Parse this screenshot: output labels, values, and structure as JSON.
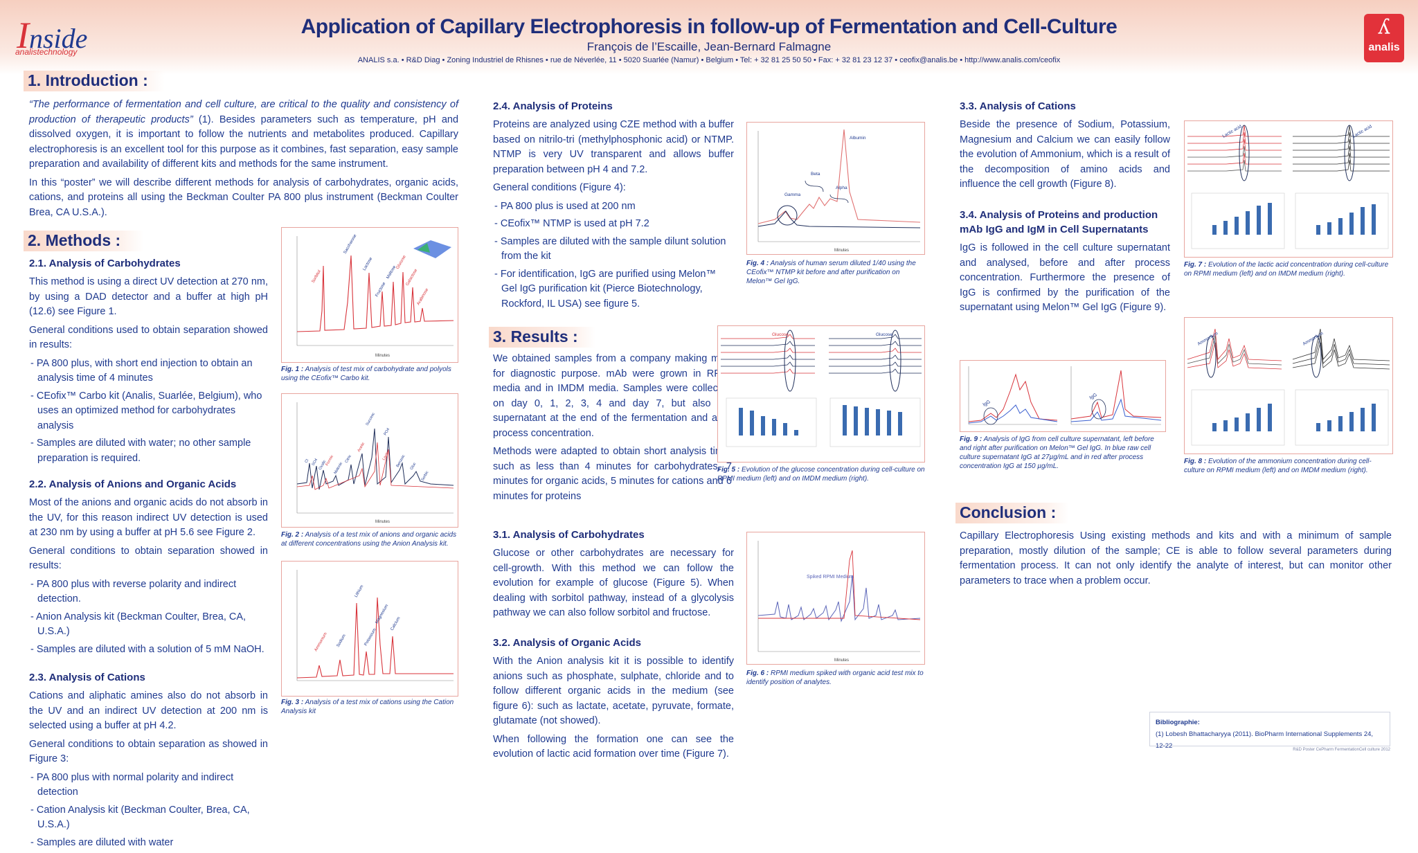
{
  "header": {
    "title": "Application of Capillary Electrophoresis in follow-up of Fermentation and Cell-Culture",
    "authors": "François de l’Escaille, Jean-Bernard Falmagne",
    "address": "ANALIS s.a. • R&D Diag • Zoning Industriel de Rhisnes • rue de Néverlée, 11 • 5020 Suarlée (Namur) • Belgium • Tel: + 32 81 25 50 50 • Fax: + 32 81 23 12 37 • ceofix@analis.be • http://www.analis.com/ceofix",
    "logo_left_main": "nside",
    "logo_left_initial": "I",
    "logo_left_sub": "analistechnology",
    "logo_right": "analis"
  },
  "intro": {
    "heading": "1. Introduction :",
    "quote": "“The performance of fermentation and cell culture, are critical to the quality and consistency of production of therapeutic products”",
    "p1_rest": " (1). Besides parameters such as temperature, pH and dissolved oxygen, it is important to follow the nutrients and metabolites produced. Capillary electrophoresis is an excellent tool for this purpose as it combines, fast separation, easy sample preparation and availability of different kits and methods for the same instrument.",
    "p2": "In this “poster” we will describe different methods for analysis of carbohydrates, organic acids, cations, and proteins all using the Beckman Coulter PA 800 plus instrument (Beckman Coulter Brea, CA U.S.A.)."
  },
  "methods": {
    "heading": "2. Methods :",
    "carb": {
      "title": "2.1. Analysis of Carbohydrates",
      "p1": "This method is using a direct UV detection at 270 nm, by using a DAD detector and a buffer at high pH (12.6) see Figure 1.",
      "p2": "General conditions used to obtain separation showed in results:",
      "items": [
        "- PA 800 plus, with short end injection to obtain an analysis time of 4 minutes",
        "- CEofix™ Carbo kit (Analis, Suarlée, Belgium), who uses an optimized method for carbohydrates analysis",
        "- Samples are diluted with water; no other sample preparation is required."
      ]
    },
    "anions": {
      "title": "2.2. Analysis of Anions and Organic Acids",
      "p1": "Most of the anions and organic acids do not absorb in the UV, for this reason indirect UV detection is used at 230 nm by using a buffer at pH 5.6 see Figure 2.",
      "p2": "General conditions to obtain separation showed in results:",
      "items": [
        "- PA 800 plus with reverse polarity and indirect detection.",
        "- Anion Analysis kit (Beckman Coulter, Brea, CA, U.S.A.)",
        "- Samples are diluted with a solution of 5 mM NaOH."
      ]
    },
    "cations": {
      "title": "2.3. Analysis of Cations",
      "p1": "Cations and aliphatic amines also do not absorb in the UV and an indirect UV detection at 200 nm is selected using a buffer at pH 4.2.",
      "p2": "General conditions to obtain separation as showed in Figure 3:",
      "items": [
        "- PA 800 plus with normal polarity and indirect detection",
        "- Cation Analysis kit (Beckman Coulter, Brea, CA, U.S.A.)",
        "- Samples are diluted with water"
      ]
    },
    "proteins": {
      "title": "2.4. Analysis of Proteins",
      "p1": "Proteins are analyzed using CZE method with a buffer based on nitrilo-tri (methylphosphonic acid) or NTMP. NTMP is very UV transparent and allows buffer preparation between pH 4 and 7.2.",
      "p2": "General conditions (Figure 4):",
      "items": [
        "- PA 800 plus is used at 200 nm",
        "- CEofix™ NTMP is used at pH 7.2",
        "- Samples are diluted with the sample dilunt solution from the kit",
        "- For identification, IgG are purified using Melon™ Gel IgG purification kit (Pierce Biotechnology, Rockford, IL USA) see figure 5."
      ]
    }
  },
  "results": {
    "heading": "3. Results :",
    "p1": "We obtained samples from a company making mAb for diagnostic purpose. mAb were grown in RPMI media and in IMDM media. Samples were collected on day 0, 1, 2, 3, 4 and day 7, but also the supernatant at the end of the fermentation and after process concentration.",
    "p2": "Methods were adapted to obtain short analysis time, such as less than 4 minutes for carbohydrates, 7 minutes for organic acids, 5 minutes for cations and 6 minutes for proteins",
    "carb": {
      "title": "3.1. Analysis of Carbohydrates",
      "p": "Glucose or other carbohydrates are necessary for cell-growth. With this method we can follow the evolution for example of glucose (Figure 5). When dealing with sorbitol pathway, instead of a glycolysis pathway we can also follow sorbitol and fructose."
    },
    "acids": {
      "title": "3.2. Analysis of Organic Acids",
      "p1": "With the Anion analysis kit it is possible to identify anions such as phosphate, sulphate, chloride and to follow different organic acids in the medium (see figure 6): such as lactate, acetate, pyruvate, formate, glutamate (not showed).",
      "p2": "When following the formation one can see the evolution of lactic acid formation over time (Figure 7)."
    },
    "cations": {
      "title": "3.3. Analysis of Cations",
      "p": "Beside the presence of Sodium, Potassium, Magnesium and Calcium we can easily follow the evolution of Ammonium, which is a result of the decomposition of amino acids and influence the cell growth (Figure 8)."
    },
    "proteins": {
      "title": "3.4. Analysis of Proteins and production mAb IgG and IgM in Cell Supernatants",
      "p": "IgG is followed in the cell culture supernatant and analysed, before and after process concentration. Furthermore the presence of IgG is confirmed by the purification of the supernatant using Melon™ Gel IgG (Figure 9)."
    }
  },
  "conclusion": {
    "heading": "Conclusion :",
    "p": "Capillary Electrophoresis Using existing methods and kits and with a minimum of sample preparation, mostly dilution of the sample; CE is able to follow several parameters during fermentation process. It can not only identify the analyte of interest, but can monitor other parameters to trace when a problem occur."
  },
  "figures": {
    "fig1": {
      "label": "Fig. 1 :",
      "text": " Analysis of test mix of carbohydrate and polyols using the CEofix™ Carbo kit.",
      "peaks": [
        "Sorbitol",
        "Saccharose",
        "Lactose",
        "Fructose",
        "Maltose",
        "Glucose",
        "Galactose",
        "Arabinose"
      ]
    },
    "fig2": {
      "label": "Fig. 2 :",
      "text": " Analysis of a test mix of anions and organic acids at different concentrations using the Anion Analysis kit.",
      "peaks": [
        "Cl",
        "SO4",
        "Oxalic",
        "Formic",
        "Malonic",
        "Citric",
        "Succinic",
        "Acetic",
        "Lactic",
        "PO4",
        "Benzoic",
        "Gluc",
        "Sorbic"
      ]
    },
    "fig3": {
      "label": "Fig. 3 :",
      "text": " Analysis of a test mix of cations using the Cation Analysis kit",
      "peaks": [
        "Ammonium",
        "Sodium",
        "Lithium",
        "Potassium",
        "Magnesium",
        "Calcium"
      ]
    },
    "fig4": {
      "label": "Fig. 4 :",
      "text": " Analysis of human serum diluted 1/40 using the CEofix™ NTMP kit before and after purification on Melon™ Gel IgG.",
      "peaks": [
        "Albumin",
        "Beta",
        "Alpha",
        "Gamma"
      ]
    },
    "fig5": {
      "label": "Fig. 5 :",
      "text": " Evolution of the glucose concentration during cell-culture on RPMI medium (left) and on IMDM medium (right).",
      "peak": "Glucose"
    },
    "fig6": {
      "label": "Fig. 6 :",
      "text": " RPMI medium spiked with organic acid test mix to identify position of analytes.",
      "inner": "Spiked RPMI Medium"
    },
    "fig7": {
      "label": "Fig. 7 :",
      "text": " Evolution of the lactic acid concentration during cell-culture on RPMI medium (left) and on IMDM medium (right).",
      "peak": "Lactic acid"
    },
    "fig8": {
      "label": "Fig. 8 :",
      "text": " Evolution of the ammonium concentration during cell-culture on RPMI medium (left) and on IMDM medium (right).",
      "peak": "Ammonium"
    },
    "fig9": {
      "label": "Fig. 9 :",
      "text": " Analysis of IgG from cell culture supernatant, left before and right after purification on Melon™ Gel IgG. In blue raw cell culture supernatant IgG at 27µg/mL and in red after process concentration IgG at 150 µg/mL.",
      "peak": "IgG"
    },
    "axis_minutes": "Minutes"
  },
  "bibliography": {
    "title": "Bibliographie:",
    "ref": "(1)  Lobesh Bhattacharyya (2011). BioPharm International Supplements 24, 12-22"
  },
  "footer_note": "R&D Poster CePharm FermentationCell culture 2012",
  "colors": {
    "accent_red": "#d8333a",
    "text_blue": "#1f3a8f",
    "band": "#f9d9cb"
  }
}
